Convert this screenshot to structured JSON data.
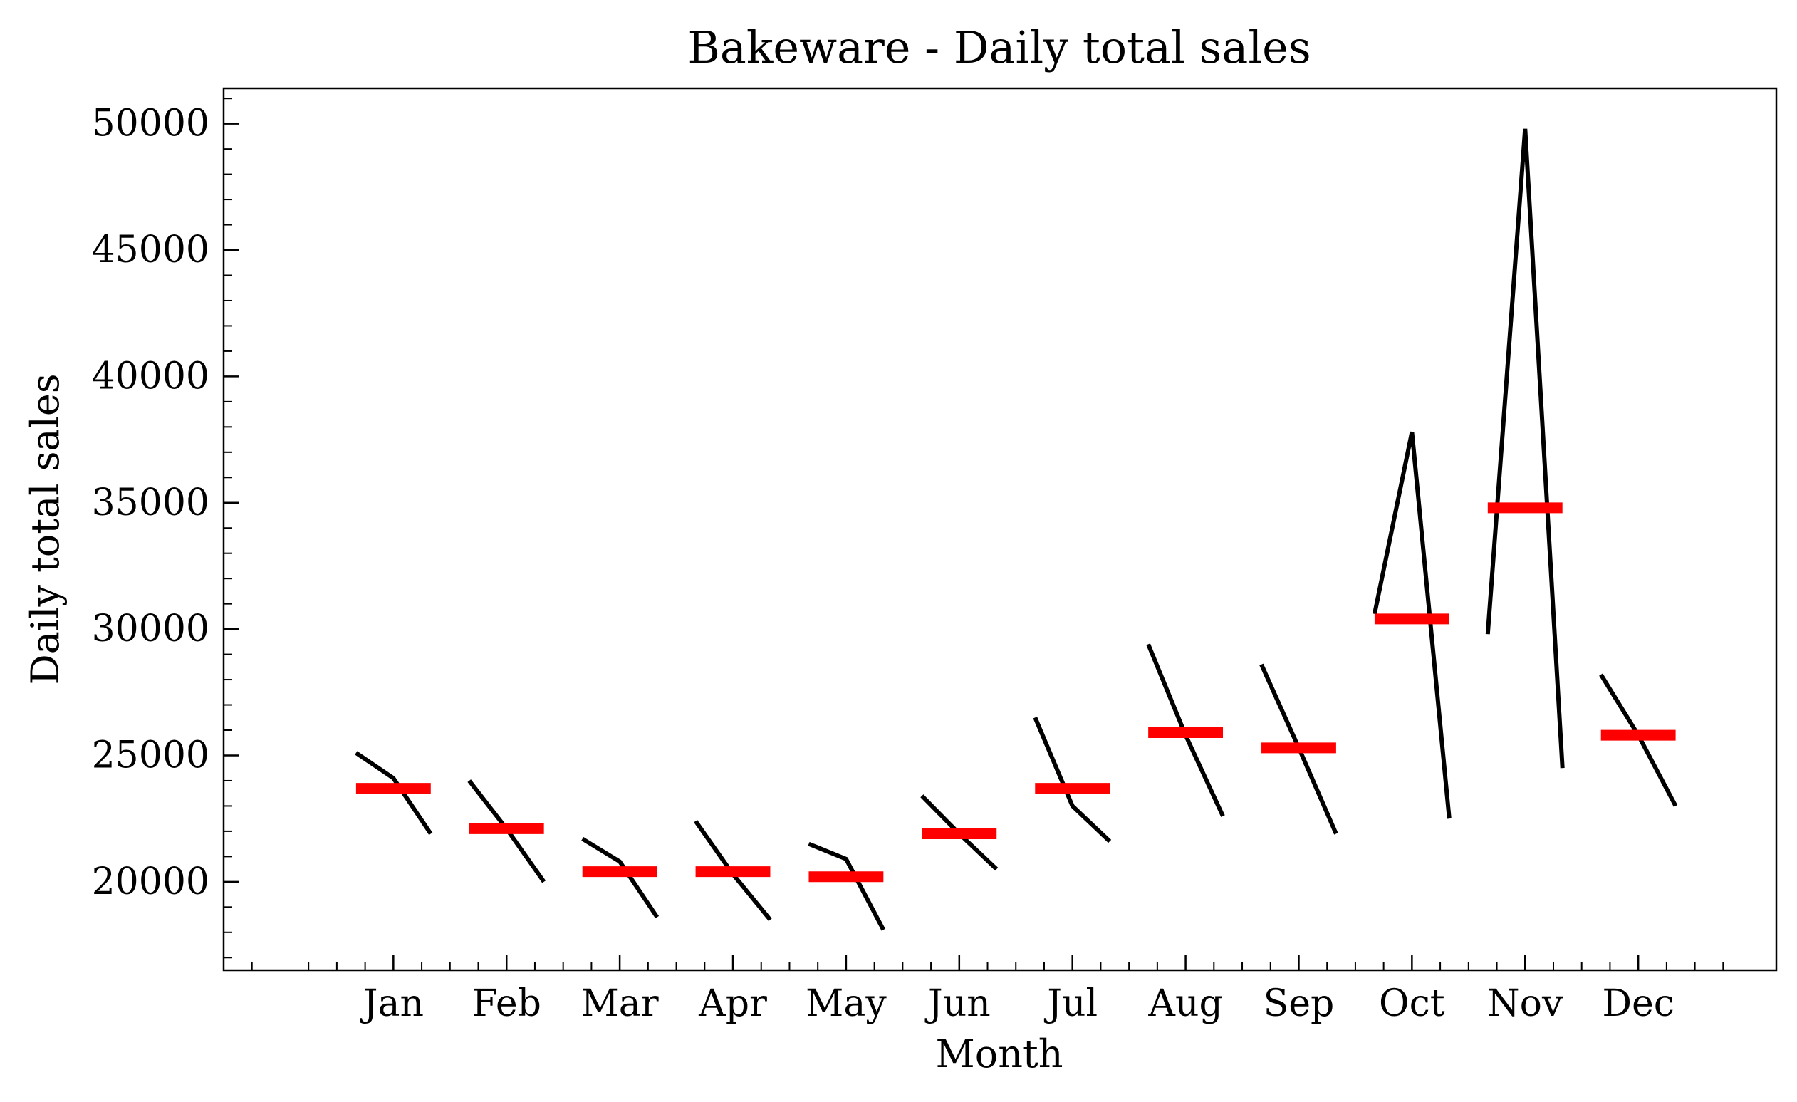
{
  "chart_data": {
    "type": "line",
    "title": "Bakeware - Daily total sales",
    "xlabel": "Month",
    "ylabel": "Daily total sales",
    "categories": [
      "Jan",
      "Feb",
      "Mar",
      "Apr",
      "May",
      "Jun",
      "Jul",
      "Aug",
      "Sep",
      "Oct",
      "Nov",
      "Dec"
    ],
    "series": [
      {
        "color": "#000000",
        "values": [
          [
            25100,
            24100,
            21900
          ],
          [
            24000,
            22100,
            20000
          ],
          [
            21700,
            20800,
            18600
          ],
          [
            22400,
            20300,
            18500
          ],
          [
            21500,
            20900,
            18100
          ],
          [
            23400,
            21900,
            20500
          ],
          [
            26500,
            23000,
            21600
          ],
          [
            29400,
            25800,
            22600
          ],
          [
            28600,
            25300,
            21900
          ],
          [
            30600,
            37800,
            22500
          ],
          [
            29800,
            49800,
            24500
          ],
          [
            28200,
            25800,
            23000
          ]
        ]
      },
      {
        "color": "#ff0000",
        "values": [
          23700,
          22100,
          20400,
          20400,
          20200,
          21900,
          23700,
          25900,
          25300,
          30400,
          34800,
          25800
        ]
      }
    ],
    "yticks": [
      20000,
      25000,
      30000,
      35000,
      40000,
      45000,
      50000
    ],
    "ylim": [
      16500,
      51400
    ],
    "grid": false
  }
}
